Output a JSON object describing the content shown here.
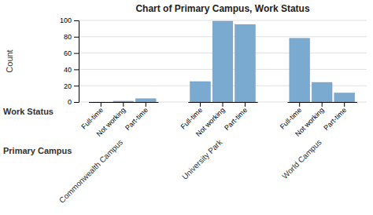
{
  "chart_data": {
    "type": "bar",
    "title": "Chart of Primary Campus, Work Status",
    "ylabel": "Count",
    "xlabel": "Work Status",
    "group_label": "Primary Campus",
    "groups": [
      "Commonwealth Campus",
      "University Park",
      "World Campus"
    ],
    "categories": [
      "Full-time",
      "Not working",
      "Part-time",
      "Full-time",
      "Not working",
      "Part-time",
      "Full-time",
      "Not working",
      "Part-time"
    ],
    "values": [
      0,
      1,
      4,
      25,
      99,
      95,
      78,
      24,
      11
    ],
    "color": "#7BAAD0",
    "ylim": [
      0,
      100
    ],
    "yticks": [
      0,
      20,
      40,
      60,
      80,
      100
    ],
    "grid": true
  }
}
